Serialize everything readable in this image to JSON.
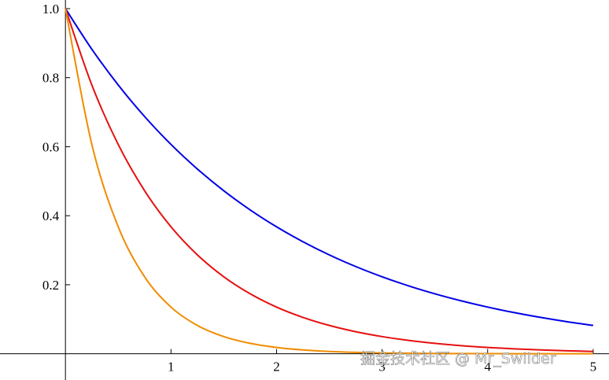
{
  "chart_data": {
    "type": "line",
    "x": [
      0,
      0.25,
      0.5,
      0.75,
      1,
      1.25,
      1.5,
      1.75,
      2,
      2.25,
      2.5,
      2.75,
      3,
      3.25,
      3.5,
      3.75,
      4,
      4.25,
      4.5,
      4.75,
      5
    ],
    "series": [
      {
        "color": "#0000e6",
        "values": [
          1,
          0.8825,
          0.7788,
          0.6873,
          0.6065,
          0.5353,
          0.4724,
          0.4169,
          0.3679,
          0.3247,
          0.2865,
          0.2528,
          0.2231,
          0.1969,
          0.1738,
          0.1534,
          0.1353,
          0.1194,
          0.1054,
          0.093,
          0.0821
        ]
      },
      {
        "color": "#e61010",
        "values": [
          1,
          0.7788,
          0.6065,
          0.4724,
          0.3679,
          0.2865,
          0.2231,
          0.1738,
          0.1353,
          0.1054,
          0.0821,
          0.0639,
          0.0498,
          0.0388,
          0.0302,
          0.0235,
          0.0183,
          0.0143,
          0.0111,
          0.0087,
          0.0067
        ]
      },
      {
        "color": "#f08c00",
        "values": [
          1,
          0.6065,
          0.3679,
          0.2231,
          0.1353,
          0.0821,
          0.0498,
          0.0302,
          0.0183,
          0.0111,
          0.0067,
          0.0041,
          0.0025,
          0.0015,
          0.0009,
          0.0006,
          0.0003,
          0.0002,
          0.0001,
          0.0001,
          0
        ]
      }
    ],
    "xlim": [
      -0.62,
      5.15
    ],
    "ylim": [
      -0.076,
      1.025
    ],
    "xticks": [
      1,
      2,
      3,
      4,
      5
    ],
    "yticks": [
      0.2,
      0.4,
      0.6,
      0.8,
      {
        "value": 1,
        "label": "1.0"
      }
    ],
    "watermark": "掘金技术社区 @ Mr_Swilder"
  }
}
